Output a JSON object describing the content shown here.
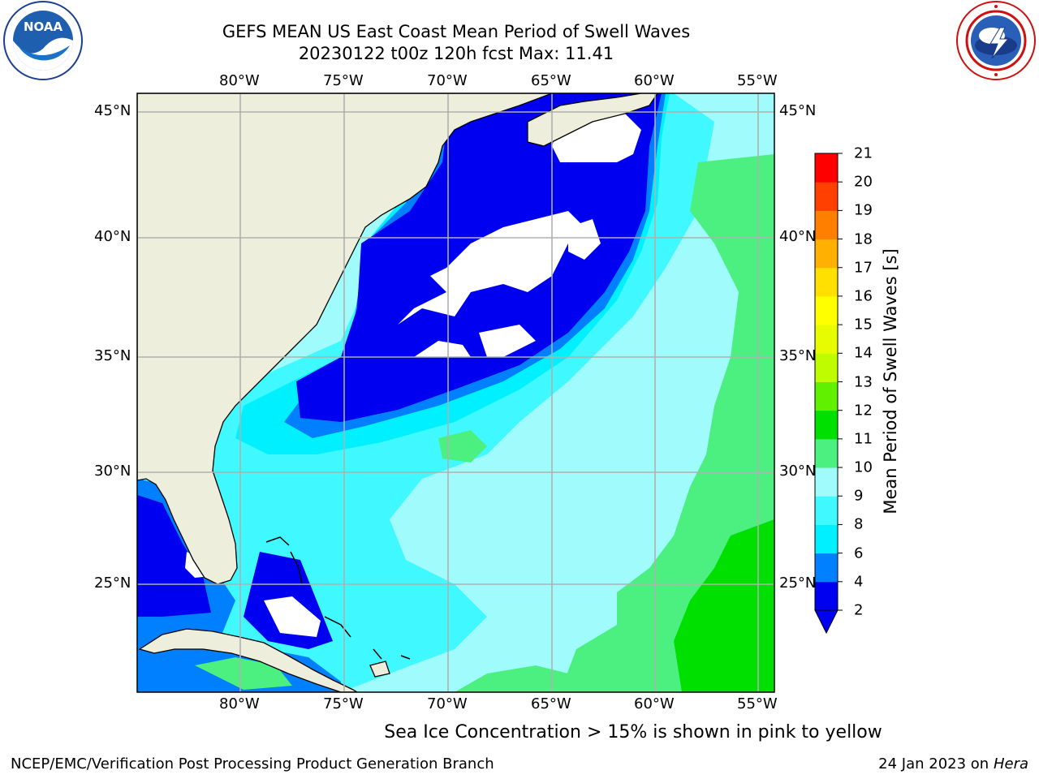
{
  "header": {
    "title_line1": "GEFS MEAN US East Coast Mean Period of Swell Waves",
    "title_line2": "20230122 t00z 120h fcst   Max: 11.41"
  },
  "logos": {
    "left": {
      "text": "NOAA",
      "icon": "noaa-logo-icon"
    },
    "right": {
      "icon": "nws-logo-icon"
    }
  },
  "map": {
    "lon_labels_top": [
      "80°W",
      "75°W",
      "70°W",
      "65°W",
      "60°W",
      "55°W"
    ],
    "lon_labels_bottom": [
      "80°W",
      "75°W",
      "70°W",
      "65°W",
      "60°W",
      "55°W"
    ],
    "lat_labels_left": [
      "45°N",
      "40°N",
      "35°N",
      "30°N",
      "25°N"
    ],
    "lat_labels_right": [
      "45°N",
      "40°N",
      "35°N",
      "30°N",
      "25°N"
    ],
    "extent": {
      "lon_min": -85,
      "lon_max": -54.5,
      "lat_min": 20.5,
      "lat_max": 45.8
    },
    "colors": {
      "land": "#eeeedc",
      "no_data": "#ffffff",
      "grid": "#b0b0b0"
    }
  },
  "colorbar": {
    "label": "Mean Period of Swell Waves [s]",
    "ticks": [
      "2",
      "4",
      "6",
      "8",
      "9",
      "10",
      "11",
      "12",
      "13",
      "14",
      "15",
      "16",
      "17",
      "18",
      "19",
      "20",
      "21"
    ],
    "bands": [
      {
        "range": "2-4",
        "color": "#0000f0"
      },
      {
        "range": "4-6",
        "color": "#0080ff"
      },
      {
        "range": "6-8",
        "color": "#00f0ff"
      },
      {
        "range": "8-9",
        "color": "#40f8ff"
      },
      {
        "range": "9-10",
        "color": "#a0fcfc"
      },
      {
        "range": "10-11",
        "color": "#4cf080"
      },
      {
        "range": "11-12",
        "color": "#00e000"
      },
      {
        "range": "12-13",
        "color": "#60f000"
      },
      {
        "range": "13-14",
        "color": "#c0fc00"
      },
      {
        "range": "14-15",
        "color": "#e8fc00"
      },
      {
        "range": "15-16",
        "color": "#ffff00"
      },
      {
        "range": "16-17",
        "color": "#ffe000"
      },
      {
        "range": "17-18",
        "color": "#ffb000"
      },
      {
        "range": "18-19",
        "color": "#ff8000"
      },
      {
        "range": "19-20",
        "color": "#ff4000"
      },
      {
        "range": "20-21",
        "color": "#ff0000"
      }
    ],
    "extend_min_color": "#0000f0"
  },
  "caption": "Sea Ice Concentration > 15% is shown in pink to yellow",
  "footer": {
    "left": "NCEP/EMC/Verification Post Processing Product Generation Branch",
    "right_date": "24 Jan 2023 on ",
    "right_host": "Hera"
  }
}
